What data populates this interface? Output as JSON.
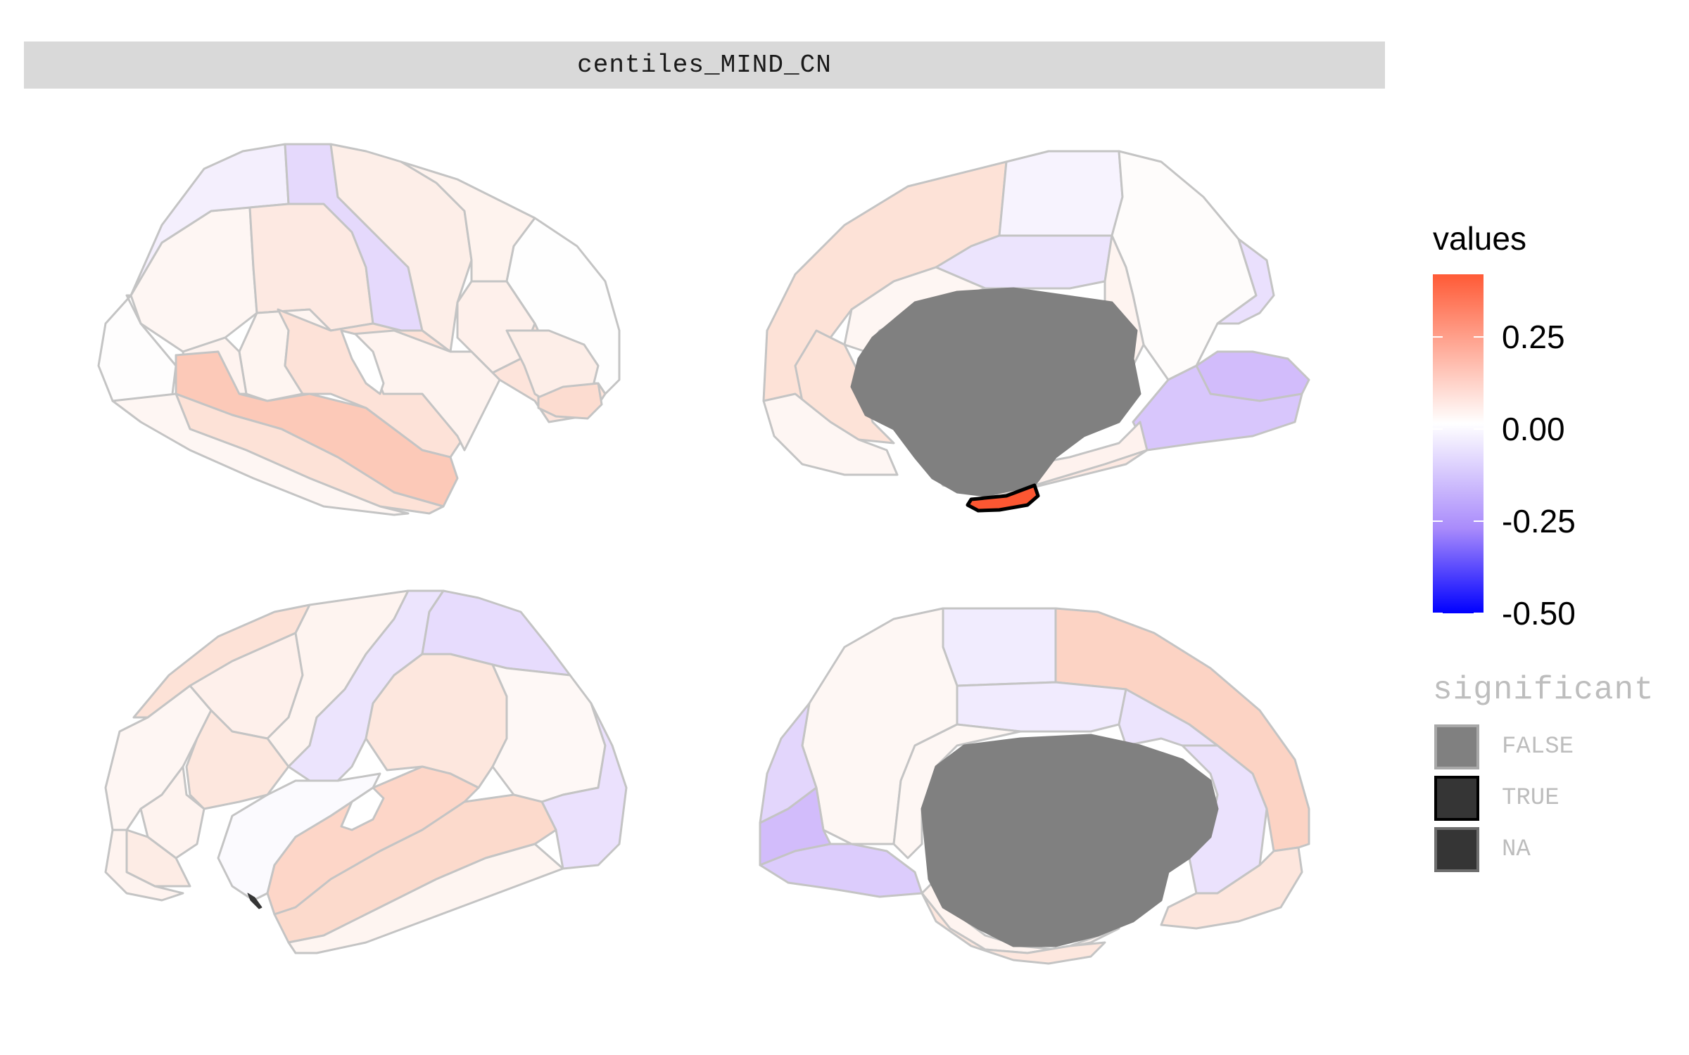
{
  "facet": {
    "label": "centiles_MIND_CN"
  },
  "legend": {
    "values": {
      "title": "values",
      "breaks": [
        0.25,
        0.0,
        -0.25,
        -0.5
      ],
      "break_labels": [
        "0.25",
        "0.00",
        "-0.25",
        "-0.50"
      ],
      "range": [
        -0.5,
        0.42
      ],
      "colors": {
        "low": "#0000ff",
        "mid": "#ffffff",
        "high": "#ff5a36"
      }
    },
    "significant": {
      "title": "significant",
      "keys": [
        {
          "label": "FALSE",
          "fill": "#808080",
          "border": "#a8a8a8"
        },
        {
          "label": "TRUE",
          "fill": "#353535",
          "border": "#000000"
        },
        {
          "label": "NA",
          "fill": "#353535",
          "border": "#6e6e6e"
        }
      ]
    }
  },
  "colors": {
    "region_border": "#c4c4c4",
    "subcortical_na": "#808080",
    "significant_border": "#000000"
  }
}
